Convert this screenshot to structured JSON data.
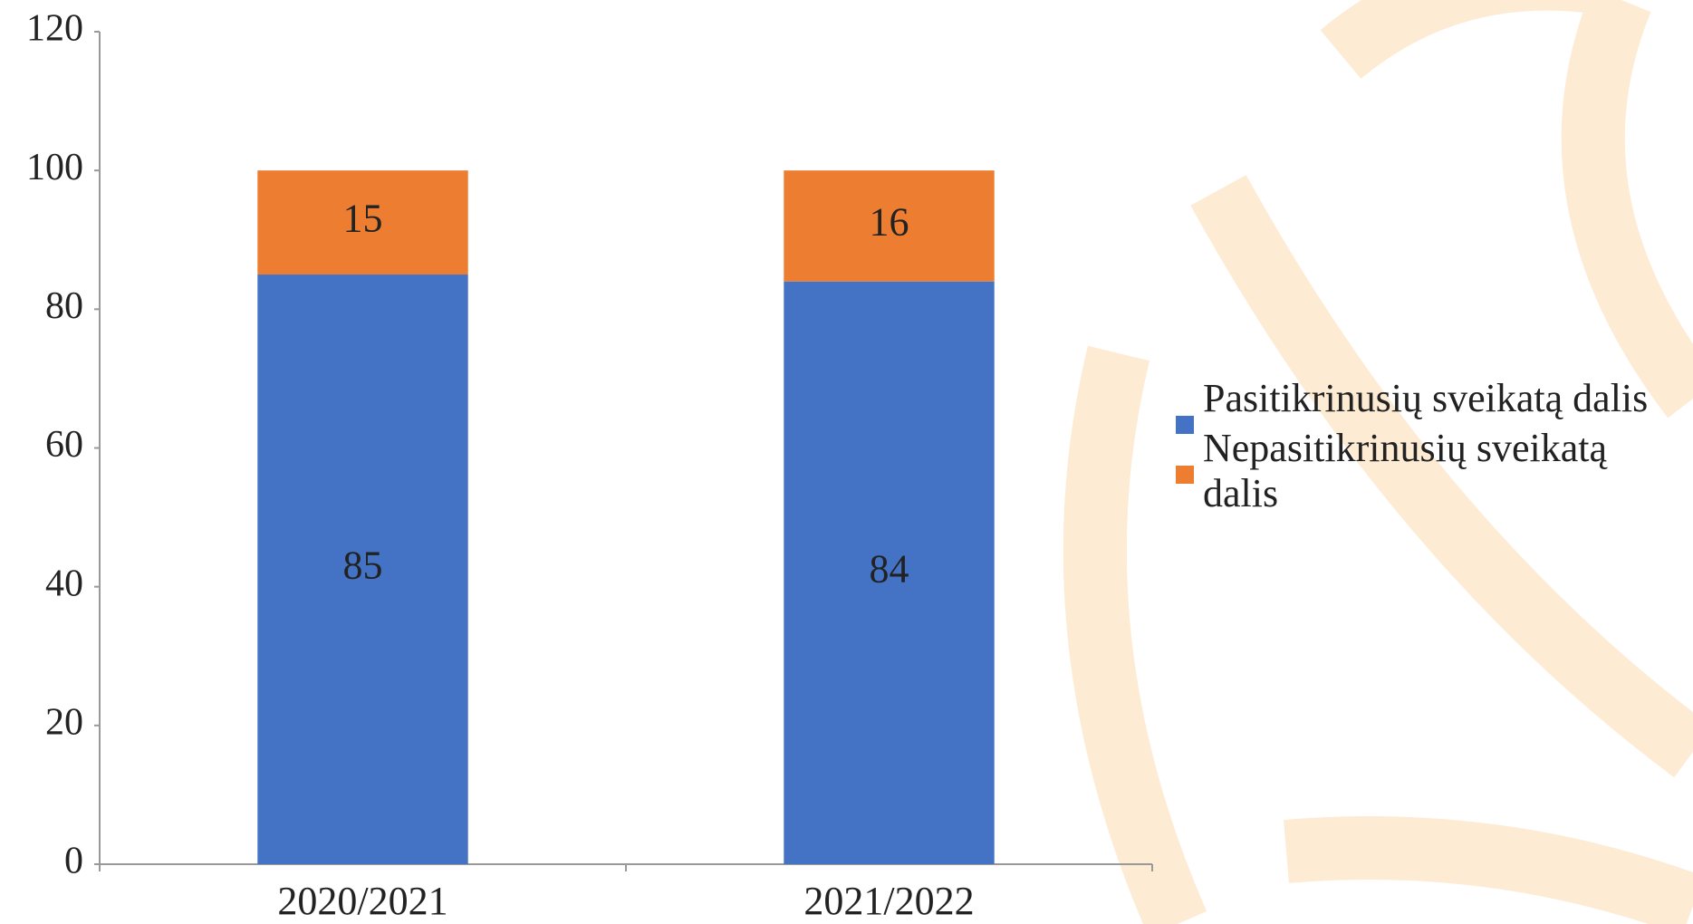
{
  "chart_data": {
    "type": "stacked_bar",
    "categories": [
      "2020/2021",
      "2021/2022"
    ],
    "series": [
      {
        "name": "Pasitikrinusių sveikatą dalis",
        "color": "#4472c4",
        "values": [
          85,
          84
        ]
      },
      {
        "name": "Nepasitikrinusių sveikatą dalis",
        "color": "#ed7d31",
        "values": [
          15,
          16
        ]
      }
    ],
    "ylim": [
      0,
      120
    ],
    "yticks": [
      0,
      20,
      40,
      60,
      80,
      100,
      120
    ],
    "grid": false,
    "legend": "right"
  }
}
